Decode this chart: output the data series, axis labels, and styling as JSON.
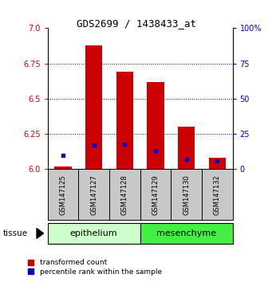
{
  "title": "GDS2699 / 1438433_at",
  "samples": [
    "GSM147125",
    "GSM147127",
    "GSM147128",
    "GSM147129",
    "GSM147130",
    "GSM147132"
  ],
  "red_values": [
    6.02,
    6.88,
    6.69,
    6.62,
    6.3,
    6.08
  ],
  "blue_values": [
    6.1,
    6.17,
    6.18,
    6.13,
    6.07,
    6.06
  ],
  "ymin": 6.0,
  "ymax": 7.0,
  "yticks_left": [
    6.0,
    6.25,
    6.5,
    6.75,
    7.0
  ],
  "yticks_right": [
    0,
    25,
    50,
    75,
    100
  ],
  "tissue_label": "tissue",
  "red_color": "#CC0000",
  "blue_color": "#0000CC",
  "bar_width": 0.55,
  "sample_box_color": "#C8C8C8",
  "epithelium_color": "#CCFFCC",
  "mesenchyme_color": "#44EE44",
  "legend_red": "transformed count",
  "legend_blue": "percentile rank within the sample",
  "title_fontsize": 9,
  "axis_fontsize": 7,
  "sample_fontsize": 6,
  "group_fontsize": 8,
  "legend_fontsize": 6.5
}
